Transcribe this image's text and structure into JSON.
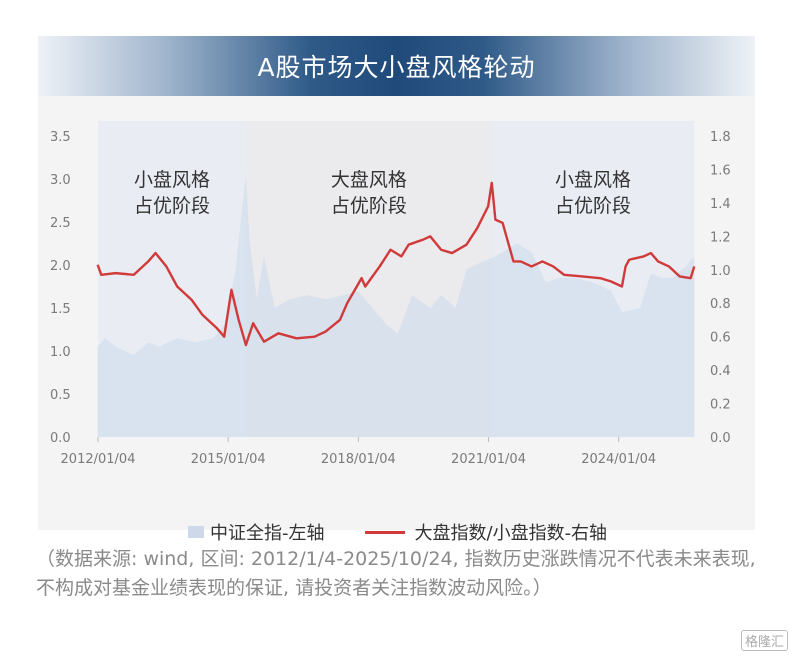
{
  "title": "A股市场大小盘风格轮动",
  "chart_data": {
    "type": "area+line",
    "title": "A股市场大小盘风格轮动",
    "x_ticks": [
      "2012/01/04",
      "2015/01/04",
      "2018/01/04",
      "2021/01/04",
      "2024/01/04"
    ],
    "x_range": [
      "2012/01/04",
      "2025/10/24"
    ],
    "left_axis": {
      "ylim": [
        0,
        3.5
      ],
      "ticks": [
        "0.0",
        "0.5",
        "1.0",
        "1.5",
        "2.0",
        "2.5",
        "3.0",
        "3.5"
      ]
    },
    "right_axis": {
      "ylim": [
        0,
        1.8
      ],
      "ticks": [
        "0.0",
        "0.2",
        "0.4",
        "0.6",
        "0.8",
        "1.0",
        "1.2",
        "1.4",
        "1.6",
        "1.8"
      ]
    },
    "grid": false,
    "legend_position": "bottom",
    "phases": [
      {
        "label_line1": "小盘风格",
        "label_line2": "占优阶段",
        "start": "2012-01",
        "end": "2015-06",
        "color": "#e9edf3"
      },
      {
        "label_line1": "大盘风格",
        "label_line2": "占优阶段",
        "start": "2015-06",
        "end": "2021-02",
        "color": "#ebeaec"
      },
      {
        "label_line1": "小盘风格",
        "label_line2": "占优阶段",
        "start": "2021-02",
        "end": "2025-10",
        "color": "#e9edf3"
      }
    ],
    "series": [
      {
        "name": "中证全指-左轴",
        "type": "area",
        "axis": "left",
        "color": "#d3dded",
        "points": [
          [
            "2012-01",
            1.05
          ],
          [
            "2012-03",
            1.15
          ],
          [
            "2012-06",
            1.05
          ],
          [
            "2012-11",
            0.95
          ],
          [
            "2013-03",
            1.1
          ],
          [
            "2013-06",
            1.05
          ],
          [
            "2013-11",
            1.15
          ],
          [
            "2014-04",
            1.1
          ],
          [
            "2014-09",
            1.15
          ],
          [
            "2014-12",
            1.3
          ],
          [
            "2015-03",
            1.9
          ],
          [
            "2015-06",
            3.05
          ],
          [
            "2015-07",
            2.3
          ],
          [
            "2015-09",
            1.6
          ],
          [
            "2015-11",
            2.1
          ],
          [
            "2016-02",
            1.5
          ],
          [
            "2016-06",
            1.6
          ],
          [
            "2016-11",
            1.65
          ],
          [
            "2017-04",
            1.6
          ],
          [
            "2017-09",
            1.65
          ],
          [
            "2018-01",
            1.7
          ],
          [
            "2018-04",
            1.55
          ],
          [
            "2018-09",
            1.3
          ],
          [
            "2018-12",
            1.2
          ],
          [
            "2019-04",
            1.65
          ],
          [
            "2019-09",
            1.5
          ],
          [
            "2019-12",
            1.65
          ],
          [
            "2020-04",
            1.5
          ],
          [
            "2020-07",
            1.95
          ],
          [
            "2020-12",
            2.05
          ],
          [
            "2021-03",
            2.1
          ],
          [
            "2021-09",
            2.25
          ],
          [
            "2022-01",
            2.15
          ],
          [
            "2022-05",
            1.8
          ],
          [
            "2022-09",
            1.85
          ],
          [
            "2023-01",
            1.85
          ],
          [
            "2023-06",
            1.8
          ],
          [
            "2023-11",
            1.7
          ],
          [
            "2024-02",
            1.45
          ],
          [
            "2024-07",
            1.5
          ],
          [
            "2024-10",
            1.9
          ],
          [
            "2025-01",
            1.85
          ],
          [
            "2025-04",
            1.85
          ],
          [
            "2025-08",
            2.0
          ],
          [
            "2025-10",
            2.1
          ]
        ]
      },
      {
        "name": "大盘指数/小盘指数-右轴",
        "type": "line",
        "axis": "right",
        "color": "#d13a3a",
        "points": [
          [
            "2012-01",
            1.03
          ],
          [
            "2012-02",
            0.97
          ],
          [
            "2012-06",
            0.98
          ],
          [
            "2012-11",
            0.97
          ],
          [
            "2013-03",
            1.05
          ],
          [
            "2013-05",
            1.1
          ],
          [
            "2013-08",
            1.02
          ],
          [
            "2013-11",
            0.9
          ],
          [
            "2014-03",
            0.82
          ],
          [
            "2014-06",
            0.73
          ],
          [
            "2014-10",
            0.65
          ],
          [
            "2014-12",
            0.6
          ],
          [
            "2015-02",
            0.88
          ],
          [
            "2015-04",
            0.7
          ],
          [
            "2015-06",
            0.55
          ],
          [
            "2015-08",
            0.68
          ],
          [
            "2015-11",
            0.57
          ],
          [
            "2016-03",
            0.62
          ],
          [
            "2016-08",
            0.59
          ],
          [
            "2017-01",
            0.6
          ],
          [
            "2017-04",
            0.63
          ],
          [
            "2017-08",
            0.7
          ],
          [
            "2017-10",
            0.8
          ],
          [
            "2018-02",
            0.95
          ],
          [
            "2018-03",
            0.9
          ],
          [
            "2018-07",
            1.02
          ],
          [
            "2018-10",
            1.12
          ],
          [
            "2019-01",
            1.08
          ],
          [
            "2019-03",
            1.15
          ],
          [
            "2019-07",
            1.18
          ],
          [
            "2019-09",
            1.2
          ],
          [
            "2019-12",
            1.12
          ],
          [
            "2020-03",
            1.1
          ],
          [
            "2020-07",
            1.15
          ],
          [
            "2020-10",
            1.25
          ],
          [
            "2021-01",
            1.38
          ],
          [
            "2021-02",
            1.52
          ],
          [
            "2021-03",
            1.3
          ],
          [
            "2021-05",
            1.28
          ],
          [
            "2021-08",
            1.05
          ],
          [
            "2021-10",
            1.05
          ],
          [
            "2022-01",
            1.02
          ],
          [
            "2022-04",
            1.05
          ],
          [
            "2022-07",
            1.02
          ],
          [
            "2022-10",
            0.97
          ],
          [
            "2023-03",
            0.96
          ],
          [
            "2023-08",
            0.95
          ],
          [
            "2023-11",
            0.93
          ],
          [
            "2024-02",
            0.9
          ],
          [
            "2024-03",
            1.02
          ],
          [
            "2024-04",
            1.06
          ],
          [
            "2024-08",
            1.08
          ],
          [
            "2024-10",
            1.1
          ],
          [
            "2024-12",
            1.05
          ],
          [
            "2025-03",
            1.02
          ],
          [
            "2025-06",
            0.96
          ],
          [
            "2025-09",
            0.95
          ],
          [
            "2025-10",
            1.02
          ]
        ]
      }
    ]
  },
  "legend": {
    "area_label": "中证全指-左轴",
    "line_label": "大盘指数/小盘指数-右轴"
  },
  "footnote": "（数据来源: wind, 区间: 2012/1/4-2025/10/24, 指数历史涨跌情况不代表未来表现, 不构成对基金业绩表现的保证, 请投资者关注指数波动风险。）",
  "watermark": "格隆汇"
}
